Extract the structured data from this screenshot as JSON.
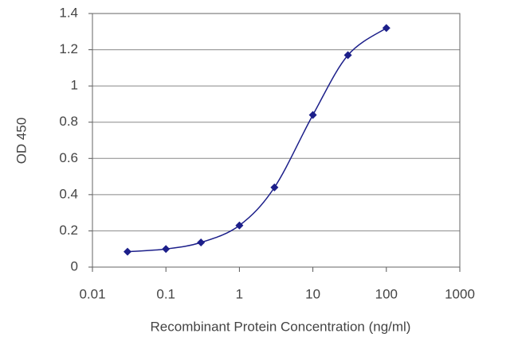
{
  "chart_data": {
    "type": "line",
    "xlabel": "Recombinant Protein Concentration (ng/ml)",
    "ylabel": "OD 450",
    "x": [
      0.03,
      0.1,
      0.3,
      1,
      3,
      10,
      30,
      100
    ],
    "series": [
      {
        "name": "OD 450",
        "color": "#1c1f8a",
        "values": [
          0.085,
          0.1,
          0.136,
          0.23,
          0.44,
          0.84,
          1.17,
          1.32
        ]
      }
    ],
    "xscale": "log",
    "xlim": [
      0.01,
      1000
    ],
    "xticks": [
      0.01,
      0.1,
      1,
      10,
      100,
      1000
    ],
    "ylim": [
      0,
      1.4
    ],
    "yticks": [
      0,
      0.2,
      0.4,
      0.6,
      0.8,
      1,
      1.2,
      1.4
    ],
    "grid": true
  }
}
